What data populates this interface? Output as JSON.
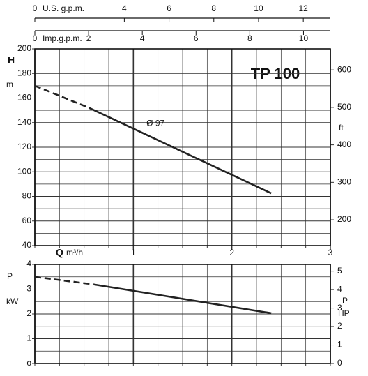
{
  "chart_data": [
    {
      "type": "line",
      "title": "TP 100",
      "ylabel": "H",
      "yunit": "m",
      "y2label": "ft",
      "xlabel": "Q",
      "xunit": "m³/h",
      "xlim": [
        0,
        3
      ],
      "xticks": [
        1,
        2,
        3
      ],
      "ylim": [
        40,
        200
      ],
      "yticks": [
        40,
        60,
        80,
        100,
        120,
        140,
        160,
        180,
        200
      ],
      "y2lim": [
        131.2,
        656.2
      ],
      "y2ticks": [
        200,
        300,
        400,
        500,
        600
      ],
      "top_axes": [
        {
          "label": "U.S. g.p.m.",
          "lim": [
            0,
            13.21
          ],
          "ticks": [
            0,
            4,
            6,
            8,
            10,
            12
          ]
        },
        {
          "label": "Imp.g.p.m.",
          "lim": [
            0,
            11.0
          ],
          "ticks": [
            0,
            2,
            4,
            6,
            8,
            10
          ]
        }
      ],
      "grid": true,
      "color": "#222222",
      "series": [
        {
          "style": "dashed",
          "x": [
            0,
            0.55
          ],
          "values": [
            170,
            152
          ]
        },
        {
          "name": "Ø 97",
          "style": "solid",
          "x": [
            0.55,
            2.4
          ],
          "values": [
            152,
            82.5
          ]
        }
      ]
    },
    {
      "type": "line",
      "ylabel": "P",
      "yunit": "kW",
      "y2label": "P",
      "y2unit": "HP",
      "xlim": [
        0,
        3
      ],
      "ylim": [
        0,
        4
      ],
      "yticks": [
        {
          "value": 0,
          "label": "o"
        },
        1,
        2,
        3,
        4
      ],
      "y2lim": [
        0,
        5.364
      ],
      "y2ticks": [
        0,
        1,
        2,
        3,
        4,
        5
      ],
      "grid": true,
      "color": "#222222",
      "series": [
        {
          "style": "dashed",
          "x": [
            0,
            0.6
          ],
          "values": [
            3.5,
            3.19
          ]
        },
        {
          "style": "solid",
          "x": [
            0.6,
            2.4
          ],
          "values": [
            3.19,
            2.03
          ]
        }
      ]
    }
  ]
}
